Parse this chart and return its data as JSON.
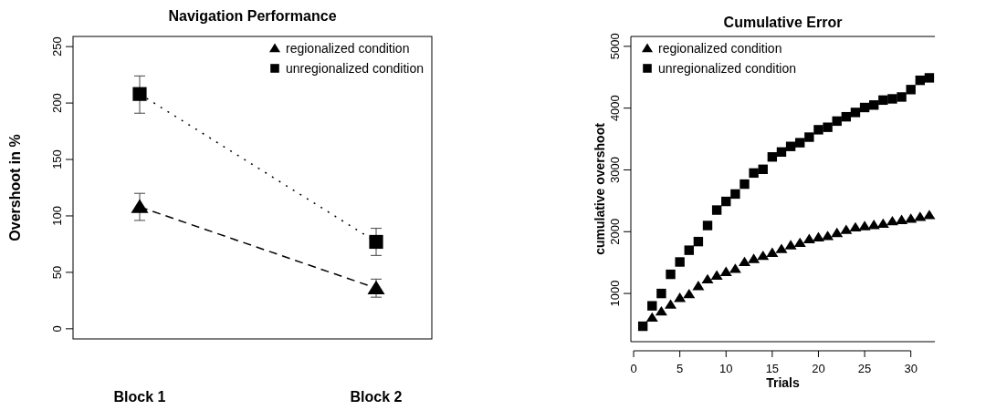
{
  "chart_data": [
    {
      "type": "line",
      "title": "Navigation Performance",
      "ylabel": "Overshoot in %",
      "categories": [
        "Block 1",
        "Block 2"
      ],
      "ylim": [
        -9,
        259
      ],
      "yticks": [
        0,
        50,
        100,
        150,
        200,
        250
      ],
      "legend": "top right",
      "series": [
        {
          "name": "regionalized condition",
          "color": "#000000",
          "marker": "triangle",
          "line_style": "dashed",
          "values": [
            108,
            36
          ],
          "errors": [
            [
              96,
              120
            ],
            [
              28,
              44
            ]
          ]
        },
        {
          "name": "unregionalized condition",
          "color": "#000000",
          "marker": "square",
          "line_style": "dotted",
          "values": [
            208,
            77
          ],
          "errors": [
            [
              191,
              224
            ],
            [
              65,
              89
            ]
          ]
        }
      ]
    },
    {
      "type": "scatter",
      "title": "Cumulative Error",
      "xlabel": "Trials",
      "ylabel": "cumulative overshoot",
      "xlim": [
        -0.3,
        32.6
      ],
      "xticks": [
        0,
        5,
        10,
        15,
        20,
        25,
        30
      ],
      "ylim": [
        220,
        5160
      ],
      "yticks": [
        1000,
        2000,
        3000,
        4000,
        5000
      ],
      "legend": "top left",
      "x": [
        1,
        2,
        3,
        4,
        5,
        6,
        7,
        8,
        9,
        10,
        11,
        12,
        13,
        14,
        15,
        16,
        17,
        18,
        19,
        20,
        21,
        22,
        23,
        24,
        25,
        26,
        27,
        28,
        29,
        30,
        31,
        32
      ],
      "series": [
        {
          "name": "regionalized condition",
          "color": "#000000",
          "marker": "triangle",
          "values": [
            null,
            610,
            710,
            820,
            930,
            990,
            1120,
            1230,
            1290,
            1350,
            1400,
            1510,
            1560,
            1610,
            1660,
            1720,
            1780,
            1820,
            1880,
            1910,
            1930,
            1980,
            2030,
            2070,
            2090,
            2110,
            2130,
            2170,
            2190,
            2210,
            2240,
            2270
          ]
        },
        {
          "name": "unregionalized condition",
          "color": "#000000",
          "marker": "square",
          "values": [
            470,
            800,
            1000,
            1310,
            1510,
            1700,
            1840,
            2100,
            2350,
            2490,
            2610,
            2770,
            2950,
            3010,
            3210,
            3290,
            3380,
            3440,
            3530,
            3650,
            3690,
            3790,
            3860,
            3930,
            4010,
            4050,
            4130,
            4150,
            4180,
            4300,
            4450,
            4490
          ]
        }
      ]
    }
  ]
}
